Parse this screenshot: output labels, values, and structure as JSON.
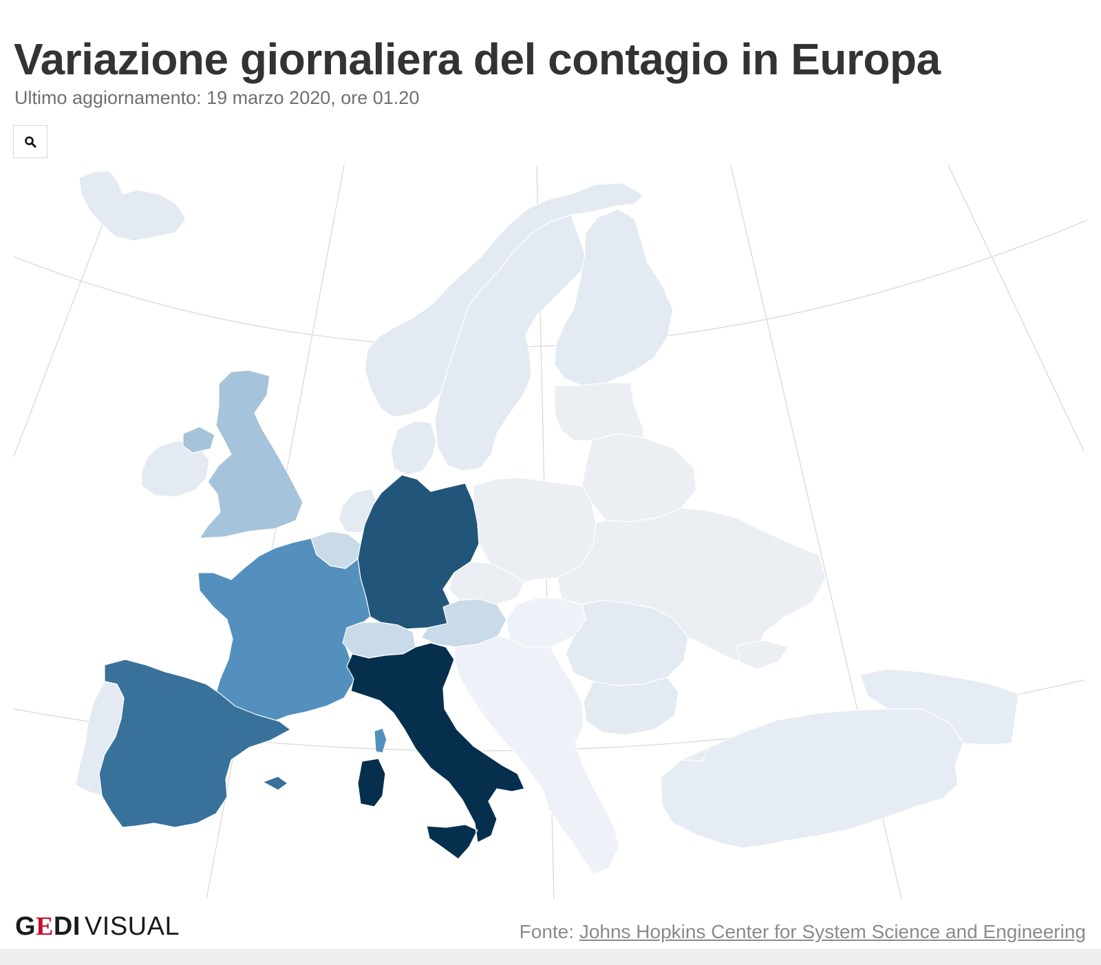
{
  "header": {
    "title": "Variazione giornaliera del contagio in Europa",
    "subtitle": "Ultimo aggiornamento: 19 marzo 2020, ore 01.20"
  },
  "controls": {
    "zoom_icon": "search-icon"
  },
  "colors": {
    "background": "#ffffff",
    "graticule": "#d9d9d9",
    "country_border": "#ffffff",
    "scale": [
      "#ebeff4",
      "#e3eaf2",
      "#c9dbe8",
      "#a5c3da",
      "#5390bd",
      "#38729b",
      "#21557a",
      "#062f4e"
    ]
  },
  "map": {
    "countries": [
      {
        "name": "Iceland",
        "color": "#e3eaf2"
      },
      {
        "name": "Norway",
        "color": "#e3eaf2"
      },
      {
        "name": "Sweden",
        "color": "#e3eaf2"
      },
      {
        "name": "Finland",
        "color": "#e3eaf2"
      },
      {
        "name": "United Kingdom",
        "color": "#a5c3da"
      },
      {
        "name": "Ireland",
        "color": "#e3eaf2"
      },
      {
        "name": "Denmark",
        "color": "#e3eaf2"
      },
      {
        "name": "Netherlands",
        "color": "#e3eaf2"
      },
      {
        "name": "Belgium",
        "color": "#c9dbe8"
      },
      {
        "name": "Germany",
        "color": "#21557a"
      },
      {
        "name": "France",
        "color": "#5390bd"
      },
      {
        "name": "Spain",
        "color": "#38729b"
      },
      {
        "name": "Portugal",
        "color": "#e3eaf2"
      },
      {
        "name": "Switzerland",
        "color": "#c9dbe8"
      },
      {
        "name": "Austria",
        "color": "#c9dbe8"
      },
      {
        "name": "Italy",
        "color": "#062f4e"
      },
      {
        "name": "Poland",
        "color": "#ebeff4"
      },
      {
        "name": "Czechia",
        "color": "#ebeff4"
      },
      {
        "name": "Hungary",
        "color": "#eef2f8"
      },
      {
        "name": "Romania",
        "color": "#e3eaf2"
      },
      {
        "name": "Ukraine",
        "color": "#ebeff4"
      },
      {
        "name": "Belarus",
        "color": "#ebeff4"
      },
      {
        "name": "Turkey",
        "color": "#e6ecf3"
      }
    ]
  },
  "footer": {
    "logo_bold_1": "G",
    "logo_accent": "E",
    "logo_bold_2": "DI",
    "logo_light": "VISUAL",
    "source_prefix": "Fonte: ",
    "source_link": "Johns Hopkins Center for System Science and Engineering"
  }
}
